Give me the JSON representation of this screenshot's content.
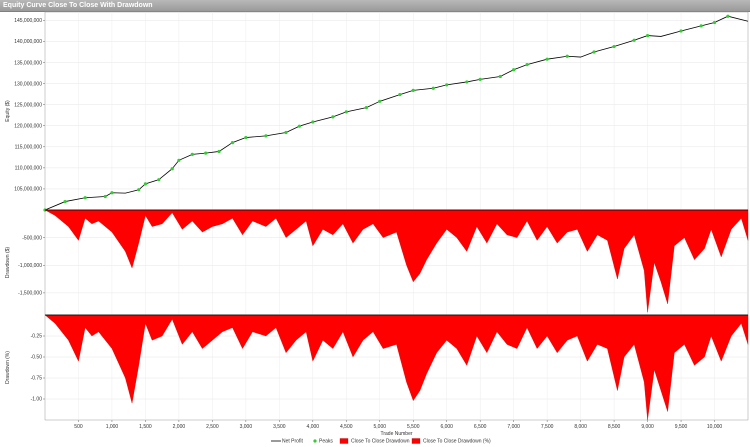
{
  "window": {
    "title": "Equity Curve Close To Close With Drawdown"
  },
  "chart_data": {
    "type": "line",
    "xlabel": "Trade Number",
    "x_ticks": [
      500,
      1000,
      1500,
      2000,
      2500,
      3000,
      3500,
      4000,
      4500,
      5000,
      5500,
      6000,
      6500,
      7000,
      7500,
      8000,
      8500,
      9000,
      9500,
      10000
    ],
    "x_tick_labels": [
      "500",
      "1,000",
      "1,500",
      "2,000",
      "2,500",
      "3,000",
      "3,500",
      "4,000",
      "4,500",
      "5,000",
      "5,500",
      "6,000",
      "6,500",
      "7,000",
      "7,500",
      "8,000",
      "8,500",
      "9,000",
      "9,500",
      "10,000"
    ],
    "xlim": [
      0,
      10500
    ],
    "panels": [
      {
        "name": "equity",
        "ylabel": "Equity ($)",
        "ylim": [
          100000000,
          147000000
        ],
        "y_ticks": [
          105000000,
          110000000,
          115000000,
          120000000,
          125000000,
          130000000,
          135000000,
          140000000,
          145000000
        ],
        "y_tick_labels": [
          "105,000,000",
          "110,000,000",
          "115,000,000",
          "120,000,000",
          "125,000,000",
          "130,000,000",
          "135,000,000",
          "140,000,000",
          "145,000,000"
        ]
      },
      {
        "name": "drawdown_dollars",
        "ylabel": "Drawdown ($)",
        "ylim": [
          -1900000,
          0
        ],
        "y_ticks": [
          -500000,
          -1000000,
          -1500000
        ],
        "y_tick_labels": [
          "-500,000",
          "-1,000,000",
          "-1,500,000"
        ]
      },
      {
        "name": "drawdown_percent",
        "ylabel": "Drawdown (%)",
        "ylim": [
          -1.25,
          0
        ],
        "y_ticks": [
          -0.25,
          -0.5,
          -0.75,
          -1.0
        ],
        "y_tick_labels": [
          "-0.25",
          "-0.50",
          "-0.75",
          "-1.00"
        ]
      }
    ],
    "series": [
      {
        "name": "Net Profit",
        "color": "#000000",
        "x": [
          0,
          300,
          600,
          900,
          1000,
          1200,
          1400,
          1500,
          1700,
          1900,
          2000,
          2200,
          2400,
          2600,
          2800,
          3000,
          3300,
          3600,
          3800,
          4000,
          4300,
          4500,
          4800,
          5000,
          5300,
          5500,
          5800,
          6000,
          6300,
          6500,
          6800,
          7000,
          7200,
          7500,
          7800,
          8000,
          8200,
          8500,
          8800,
          9000,
          9200,
          9500,
          9800,
          10000,
          10200,
          10500
        ],
        "values": [
          100000000,
          102000000,
          102900000,
          103200000,
          104100000,
          104000000,
          104800000,
          106200000,
          107200000,
          109800000,
          111800000,
          113200000,
          113500000,
          113900000,
          116000000,
          117200000,
          117600000,
          118400000,
          119900000,
          120900000,
          122100000,
          123300000,
          124300000,
          125800000,
          127400000,
          128400000,
          128900000,
          129700000,
          130400000,
          131000000,
          131700000,
          133300000,
          134500000,
          135800000,
          136500000,
          136300000,
          137500000,
          138800000,
          140300000,
          141400000,
          141200000,
          142500000,
          143700000,
          144500000,
          146000000,
          144800000
        ]
      },
      {
        "name": "Peaks",
        "color": "#33cc33"
      },
      {
        "name": "Close To Close Drawdown",
        "color": "#ff0000",
        "x": [
          0,
          150,
          350,
          500,
          600,
          700,
          800,
          1000,
          1200,
          1300,
          1400,
          1500,
          1600,
          1750,
          1900,
          2050,
          2200,
          2350,
          2500,
          2650,
          2800,
          2950,
          3100,
          3300,
          3450,
          3600,
          3750,
          3900,
          4000,
          4150,
          4300,
          4450,
          4600,
          4750,
          4900,
          5050,
          5250,
          5400,
          5500,
          5600,
          5700,
          5850,
          6000,
          6150,
          6300,
          6450,
          6600,
          6750,
          6900,
          7050,
          7200,
          7350,
          7500,
          7650,
          7800,
          7950,
          8100,
          8250,
          8400,
          8550,
          8650,
          8800,
          8950,
          9000,
          9100,
          9200,
          9300,
          9400,
          9550,
          9700,
          9850,
          9950,
          10100,
          10250,
          10400,
          10500
        ],
        "values": [
          0,
          -100000,
          -300000,
          -550000,
          -150000,
          -250000,
          -200000,
          -400000,
          -750000,
          -1050000,
          -600000,
          -100000,
          -300000,
          -250000,
          -50000,
          -350000,
          -200000,
          -400000,
          -300000,
          -250000,
          -150000,
          -450000,
          -200000,
          -300000,
          -150000,
          -500000,
          -350000,
          -200000,
          -650000,
          -350000,
          -450000,
          -250000,
          -600000,
          -350000,
          -250000,
          -500000,
          -400000,
          -1000000,
          -1300000,
          -1150000,
          -900000,
          -600000,
          -350000,
          -500000,
          -750000,
          -300000,
          -600000,
          -250000,
          -450000,
          -500000,
          -200000,
          -550000,
          -300000,
          -600000,
          -400000,
          -350000,
          -750000,
          -450000,
          -550000,
          -1250000,
          -700000,
          -450000,
          -1100000,
          -1850000,
          -950000,
          -1300000,
          -1700000,
          -650000,
          -500000,
          -900000,
          -700000,
          -350000,
          -850000,
          -350000,
          -150000,
          -550000
        ]
      },
      {
        "name": "Close To Close Drawdown (%)",
        "color": "#ff0000",
        "x": [
          0,
          150,
          350,
          500,
          600,
          700,
          800,
          1000,
          1200,
          1300,
          1400,
          1500,
          1600,
          1750,
          1900,
          2050,
          2200,
          2350,
          2500,
          2650,
          2800,
          2950,
          3100,
          3300,
          3450,
          3600,
          3750,
          3900,
          4000,
          4150,
          4300,
          4450,
          4600,
          4750,
          4900,
          5050,
          5250,
          5400,
          5500,
          5600,
          5700,
          5850,
          6000,
          6150,
          6300,
          6450,
          6600,
          6750,
          6900,
          7050,
          7200,
          7350,
          7500,
          7650,
          7800,
          7950,
          8100,
          8250,
          8400,
          8550,
          8650,
          8800,
          8950,
          9000,
          9100,
          9200,
          9300,
          9400,
          9550,
          9700,
          9850,
          9950,
          10100,
          10250,
          10400,
          10500
        ],
        "values": [
          0,
          -0.1,
          -0.3,
          -0.55,
          -0.15,
          -0.25,
          -0.2,
          -0.4,
          -0.75,
          -1.05,
          -0.6,
          -0.1,
          -0.3,
          -0.25,
          -0.05,
          -0.35,
          -0.2,
          -0.4,
          -0.3,
          -0.2,
          -0.15,
          -0.4,
          -0.2,
          -0.25,
          -0.15,
          -0.45,
          -0.3,
          -0.2,
          -0.55,
          -0.3,
          -0.4,
          -0.2,
          -0.5,
          -0.3,
          -0.2,
          -0.4,
          -0.35,
          -0.8,
          -1.02,
          -0.9,
          -0.7,
          -0.45,
          -0.3,
          -0.4,
          -0.6,
          -0.25,
          -0.45,
          -0.2,
          -0.35,
          -0.4,
          -0.15,
          -0.4,
          -0.25,
          -0.45,
          -0.3,
          -0.25,
          -0.55,
          -0.35,
          -0.4,
          -0.9,
          -0.5,
          -0.35,
          -0.8,
          -1.25,
          -0.65,
          -0.9,
          -1.15,
          -0.45,
          -0.35,
          -0.6,
          -0.5,
          -0.25,
          -0.55,
          -0.25,
          -0.1,
          -0.35
        ]
      }
    ],
    "legend": {
      "placement": "bottom-center",
      "entries": [
        "Net Profit",
        "Peaks",
        "Close To Close Drawdown",
        "Close To Close Drawdown (%)"
      ]
    }
  }
}
